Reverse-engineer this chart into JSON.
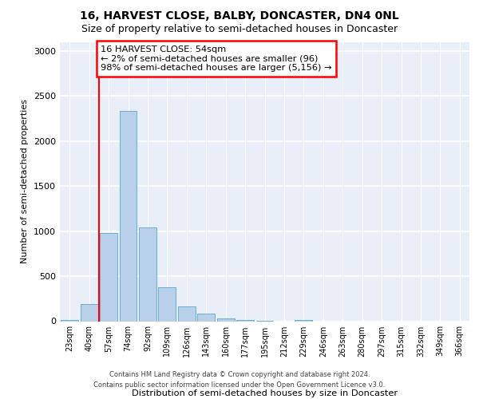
{
  "title1": "16, HARVEST CLOSE, BALBY, DONCASTER, DN4 0NL",
  "title2": "Size of property relative to semi-detached houses in Doncaster",
  "xlabel": "Distribution of semi-detached houses by size in Doncaster",
  "ylabel": "Number of semi-detached properties",
  "categories": [
    "23sqm",
    "40sqm",
    "57sqm",
    "74sqm",
    "92sqm",
    "109sqm",
    "126sqm",
    "143sqm",
    "160sqm",
    "177sqm",
    "195sqm",
    "212sqm",
    "229sqm",
    "246sqm",
    "263sqm",
    "280sqm",
    "297sqm",
    "315sqm",
    "332sqm",
    "349sqm",
    "366sqm"
  ],
  "values": [
    10,
    190,
    980,
    2330,
    1040,
    380,
    165,
    85,
    35,
    15,
    5,
    0,
    15,
    0,
    0,
    0,
    0,
    0,
    0,
    0,
    0
  ],
  "bar_color": "#b8d0ea",
  "bar_edge_color": "#6aaed6",
  "vline_x": 1.5,
  "annotation_text": "16 HARVEST CLOSE: 54sqm\n← 2% of semi-detached houses are smaller (96)\n98% of semi-detached houses are larger (5,156) →",
  "ann_box_facecolor": "white",
  "ann_box_edgecolor": "red",
  "vline_color": "red",
  "ylim": [
    0,
    3100
  ],
  "yticks": [
    0,
    500,
    1000,
    1500,
    2000,
    2500,
    3000
  ],
  "footer1": "Contains HM Land Registry data © Crown copyright and database right 2024.",
  "footer2": "Contains public sector information licensed under the Open Government Licence v3.0.",
  "bg_color": "#e8eff8",
  "title1_fontsize": 10,
  "title2_fontsize": 9
}
